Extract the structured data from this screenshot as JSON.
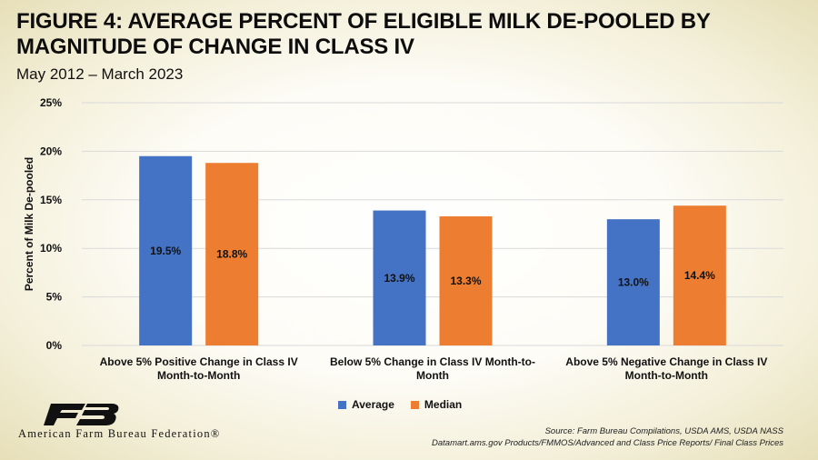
{
  "header": {
    "title": "Figure 4: Average Percent of Eligible Milk De-Pooled by Magnitude of Change in Class IV",
    "subtitle": "May 2012 – March 2023"
  },
  "chart_data": {
    "type": "bar",
    "categories": [
      [
        "Above 5% Positive Change in Class IV",
        "Month-to-Month"
      ],
      [
        "Below 5% Change in Class IV Month-to-",
        "Month"
      ],
      [
        "Above 5% Negative Change in Class IV",
        "Month-to-Month"
      ]
    ],
    "series": [
      {
        "name": "Average",
        "values": [
          19.5,
          13.9,
          13.0
        ],
        "labels": [
          "19.5%",
          "13.9%",
          "13.0%"
        ],
        "color": "#4472C4"
      },
      {
        "name": "Median",
        "values": [
          18.8,
          13.3,
          14.4
        ],
        "labels": [
          "18.8%",
          "13.3%",
          "14.4%"
        ],
        "color": "#ED7D31"
      }
    ],
    "ylabel": "Percent of Milk De-pooled",
    "ylim": [
      0,
      25
    ],
    "yticks": [
      0,
      5,
      10,
      15,
      20,
      25
    ],
    "ytick_labels": [
      "0%",
      "5%",
      "10%",
      "15%",
      "20%",
      "25%"
    ],
    "grid": true,
    "legend_position": "bottom"
  },
  "branding": {
    "org_name": "American Farm Bureau Federation®",
    "logo_text": "FB"
  },
  "source": {
    "line1": "Source: Farm Bureau Compilations, USDA AMS, USDA NASS",
    "line2": "Datamart.ams.gov Products/FMMOS/Advanced and Class Price Reports/ Final Class Prices"
  },
  "colors": {
    "average": "#4472C4",
    "median": "#ED7D31",
    "grid": "#d9d9d9"
  }
}
